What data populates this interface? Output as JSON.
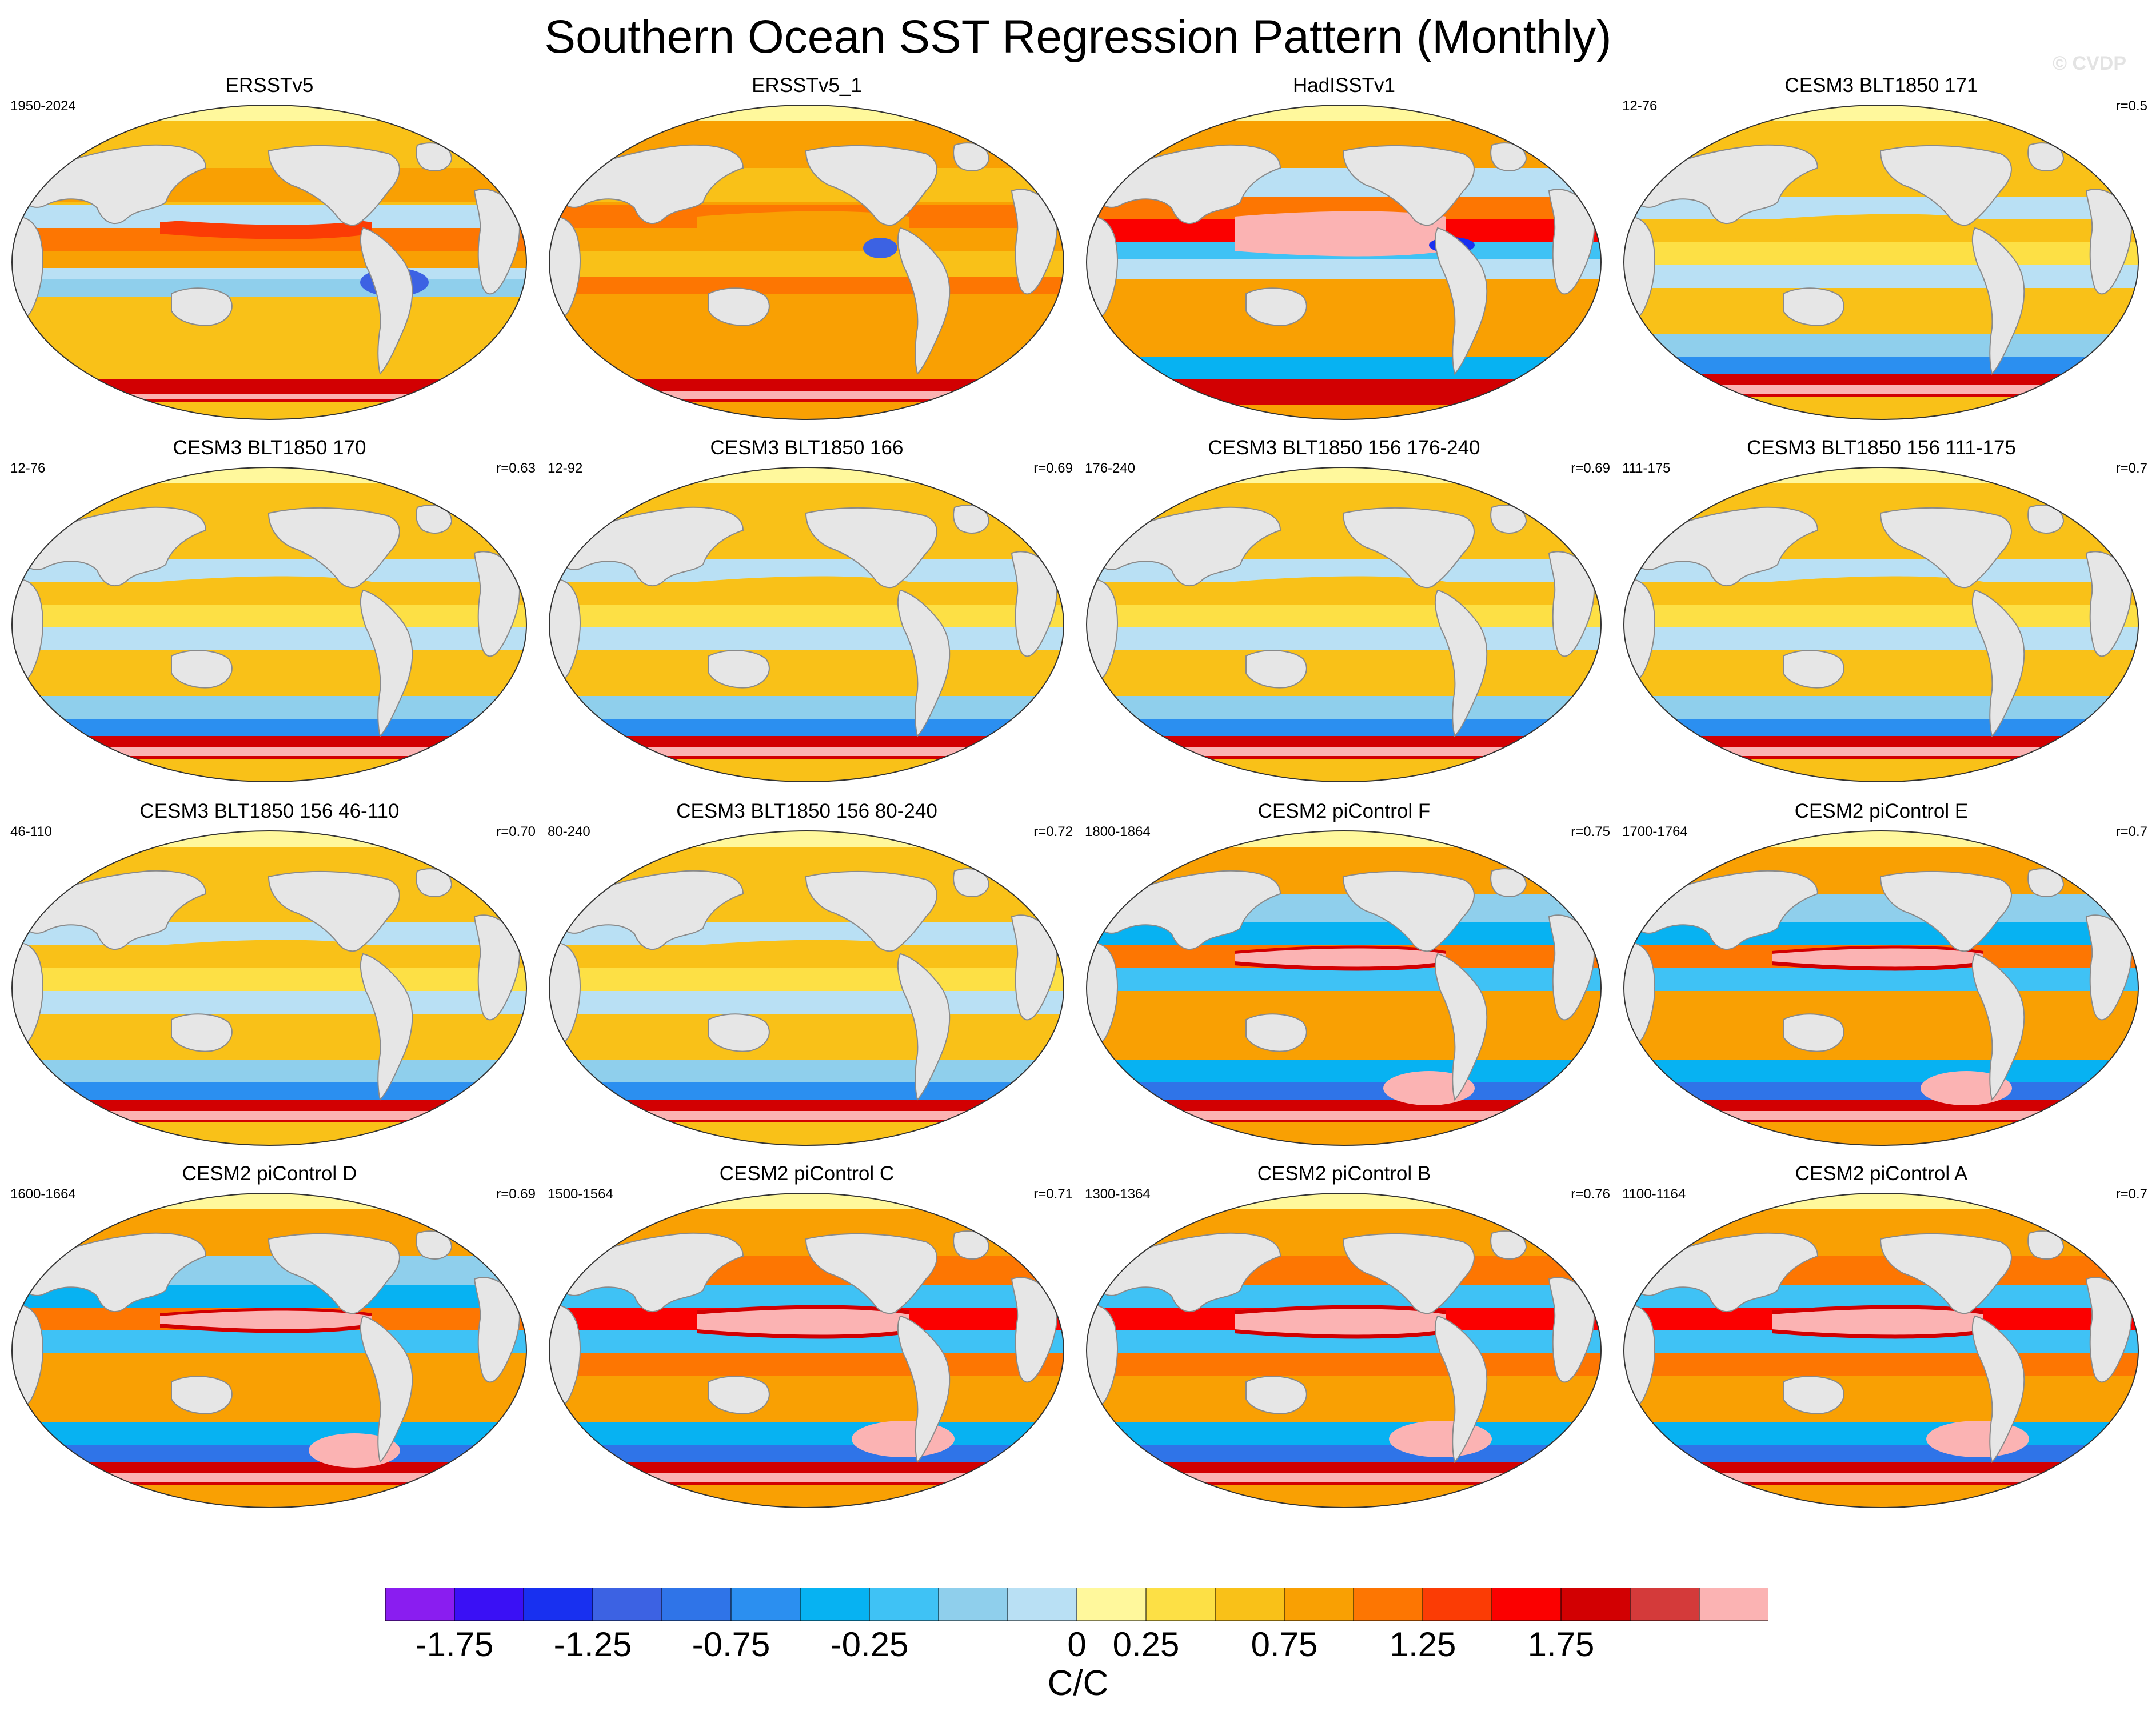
{
  "title": "Southern Ocean SST Regression Pattern (Monthly)",
  "credit": "© CVDP",
  "panels": [
    {
      "title": "ERSSTv5",
      "left_label": "1950-2024",
      "right_label": "",
      "style": "obs"
    },
    {
      "title": "ERSSTv5_1",
      "left_label": "",
      "right_label": "",
      "style": "obs1"
    },
    {
      "title": "HadISSTv1",
      "left_label": "",
      "right_label": "",
      "style": "had"
    },
    {
      "title": "CESM3 BLT1850 171",
      "left_label": "12-76",
      "right_label": "r=0.5",
      "style": "cesm3"
    },
    {
      "title": "CESM3 BLT1850 170",
      "left_label": "12-76",
      "right_label": "r=0.63",
      "style": "cesm3"
    },
    {
      "title": "CESM3 BLT1850 166",
      "left_label": "12-92",
      "right_label": "r=0.69",
      "style": "cesm3"
    },
    {
      "title": "CESM3 BLT1850 156 176-240",
      "left_label": "176-240",
      "right_label": "r=0.69",
      "style": "cesm3"
    },
    {
      "title": "CESM3 BLT1850 156 111-175",
      "left_label": "111-175",
      "right_label": "r=0.7",
      "style": "cesm3"
    },
    {
      "title": "CESM3 BLT1850 156 46-110",
      "left_label": "46-110",
      "right_label": "r=0.70",
      "style": "cesm3"
    },
    {
      "title": "CESM3 BLT1850 156 80-240",
      "left_label": "80-240",
      "right_label": "r=0.72",
      "style": "cesm3"
    },
    {
      "title": "CESM2 piControl F",
      "left_label": "1800-1864",
      "right_label": "r=0.75",
      "style": "cesm2"
    },
    {
      "title": "CESM2 piControl E",
      "left_label": "1700-1764",
      "right_label": "r=0.7",
      "style": "cesm2"
    },
    {
      "title": "CESM2 piControl D",
      "left_label": "1600-1664",
      "right_label": "r=0.69",
      "style": "cesm2"
    },
    {
      "title": "CESM2 piControl C",
      "left_label": "1500-1564",
      "right_label": "r=0.71",
      "style": "cesm2strong"
    },
    {
      "title": "CESM2 piControl B",
      "left_label": "1300-1364",
      "right_label": "r=0.76",
      "style": "cesm2strong"
    },
    {
      "title": "CESM2 piControl A",
      "left_label": "1100-1164",
      "right_label": "r=0.7",
      "style": "cesm2strong"
    }
  ],
  "colorbar": {
    "colors": [
      "#8a1df0",
      "#3a10f5",
      "#1830f0",
      "#3c62e3",
      "#2f74e8",
      "#2b8ff0",
      "#07b2f2",
      "#3fc2f5",
      "#8fcfec",
      "#b9e0f4",
      "#fff89c",
      "#fde045",
      "#f9c118",
      "#f9a003",
      "#fd7602",
      "#fb3c05",
      "#fb0000",
      "#d20002",
      "#d43a3a",
      "#fbb3b3"
    ],
    "tick_labels": [
      "-1.75",
      "-1.25",
      "-0.75",
      "-0.25",
      "0",
      "0.25",
      "0.75",
      "1.25",
      "1.75"
    ],
    "tick_boundaries": [
      1,
      3,
      5,
      7,
      10,
      11,
      13,
      15,
      17
    ],
    "units": "C/C"
  },
  "map_colors": {
    "land": "#e6e6e6",
    "coast": "#8a8a8a",
    "arctic_ice": "#fff89c"
  }
}
